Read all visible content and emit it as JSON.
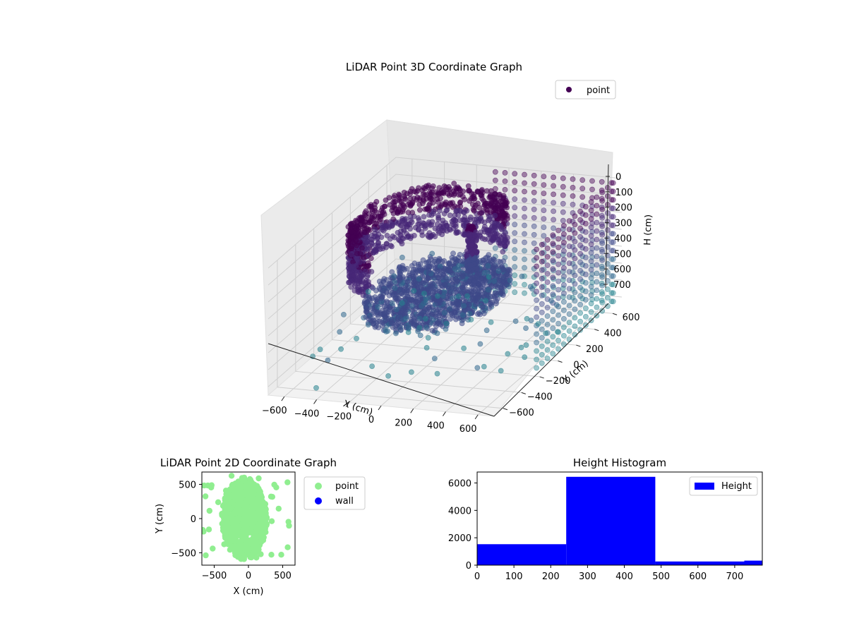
{
  "chart_data": [
    {
      "type": "scatter",
      "projection": "3d",
      "title": "LiDAR Point 3D Coordinate Graph",
      "xlabel": "X (cm)",
      "ylabel": "Y (cm)",
      "zlabel": "H (cm)",
      "xlim": [
        -700,
        700
      ],
      "ylim": [
        -700,
        700
      ],
      "zlim": [
        750,
        0
      ],
      "x_ticks": [
        -600,
        -400,
        -200,
        0,
        200,
        400,
        600
      ],
      "x_tick_labels": [
        "−600",
        "−400",
        "−200",
        "0",
        "200",
        "400",
        "600"
      ],
      "y_ticks": [
        -600,
        -400,
        -200,
        0,
        200,
        400,
        600
      ],
      "y_tick_labels": [
        "−600",
        "−400",
        "−200",
        "0",
        "200",
        "400",
        "600"
      ],
      "z_ticks": [
        0,
        100,
        200,
        300,
        400,
        500,
        600,
        700
      ],
      "z_tick_labels": [
        "0",
        "100",
        "200",
        "300",
        "400",
        "500",
        "600",
        "700"
      ],
      "grid": true,
      "legend": {
        "position": "top-right",
        "entries": [
          {
            "name": "point",
            "color": "#440154"
          }
        ]
      },
      "colormap": "viridis (colored by height)",
      "series": [
        {
          "name": "point",
          "groups": [
            {
              "shape": "ring",
              "center_x": -120,
              "center_y": 40,
              "radius": 420,
              "h_from": 0,
              "h_to": 300,
              "arc_deg": [
                40,
                250
              ]
            },
            {
              "shape": "disk",
              "center_x": -50,
              "center_y": 0,
              "radius": 380,
              "h_from": 380,
              "h_to": 460
            },
            {
              "shape": "pillar",
              "x": 40,
              "y": 220,
              "h_from": 120,
              "h_to": 380
            },
            {
              "shape": "grid-wall",
              "y": 640,
              "x_from": -50,
              "x_to": 680,
              "h_from": 0,
              "h_to": 700
            },
            {
              "shape": "grid-wall",
              "x": 680,
              "y_from": -200,
              "y_to": 640,
              "h_from": 0,
              "h_to": 700
            },
            {
              "shape": "scatter",
              "note": "sparse points near the floor",
              "x_from": -650,
              "x_to": 600,
              "y_from": -650,
              "y_to": 650,
              "h_from": 480,
              "h_to": 740
            }
          ]
        }
      ]
    },
    {
      "type": "scatter",
      "title": "LiDAR Point 2D Coordinate Graph",
      "xlabel": "X (cm)",
      "ylabel": "Y (cm)",
      "xlim": [
        -680,
        680
      ],
      "ylim": [
        -680,
        680
      ],
      "x_ticks": [
        -500,
        0,
        500
      ],
      "x_tick_labels": [
        "−500",
        "0",
        "500"
      ],
      "y_ticks": [
        -500,
        0,
        500
      ],
      "y_tick_labels": [
        "−500",
        "0",
        "500"
      ],
      "legend": {
        "position": "outside-right",
        "entries": [
          {
            "name": "point",
            "color": "#90ee90"
          },
          {
            "name": "wall",
            "color": "#0000ff"
          }
        ]
      },
      "series": [
        {
          "name": "point",
          "color": "#90ee90",
          "shape": "dense blob",
          "center": [
            -60,
            0
          ],
          "radius_x": 330,
          "radius_y": 600
        },
        {
          "name": "wall",
          "color": "#0000ff",
          "points": []
        }
      ]
    },
    {
      "type": "bar",
      "subtype": "histogram",
      "title": "Height Histogram",
      "xlabel": "",
      "ylabel": "",
      "xlim": [
        0,
        775
      ],
      "ylim": [
        0,
        6800
      ],
      "x_ticks": [
        0,
        100,
        200,
        300,
        400,
        500,
        600,
        700
      ],
      "x_tick_labels": [
        "0",
        "100",
        "200",
        "300",
        "400",
        "500",
        "600",
        "700"
      ],
      "y_ticks": [
        0,
        2000,
        4000,
        6000
      ],
      "y_tick_labels": [
        "0",
        "2000",
        "4000",
        "6000"
      ],
      "legend": {
        "position": "top-right",
        "entries": [
          {
            "name": "Height",
            "color": "#0000ff"
          }
        ]
      },
      "series": [
        {
          "name": "Height",
          "color": "#0000ff",
          "bins": [
            {
              "from": 0,
              "to": 242,
              "count": 1530
            },
            {
              "from": 242,
              "to": 484,
              "count": 6450
            },
            {
              "from": 484,
              "to": 726,
              "count": 270
            },
            {
              "from": 726,
              "to": 775,
              "count": 330
            }
          ]
        }
      ]
    }
  ]
}
